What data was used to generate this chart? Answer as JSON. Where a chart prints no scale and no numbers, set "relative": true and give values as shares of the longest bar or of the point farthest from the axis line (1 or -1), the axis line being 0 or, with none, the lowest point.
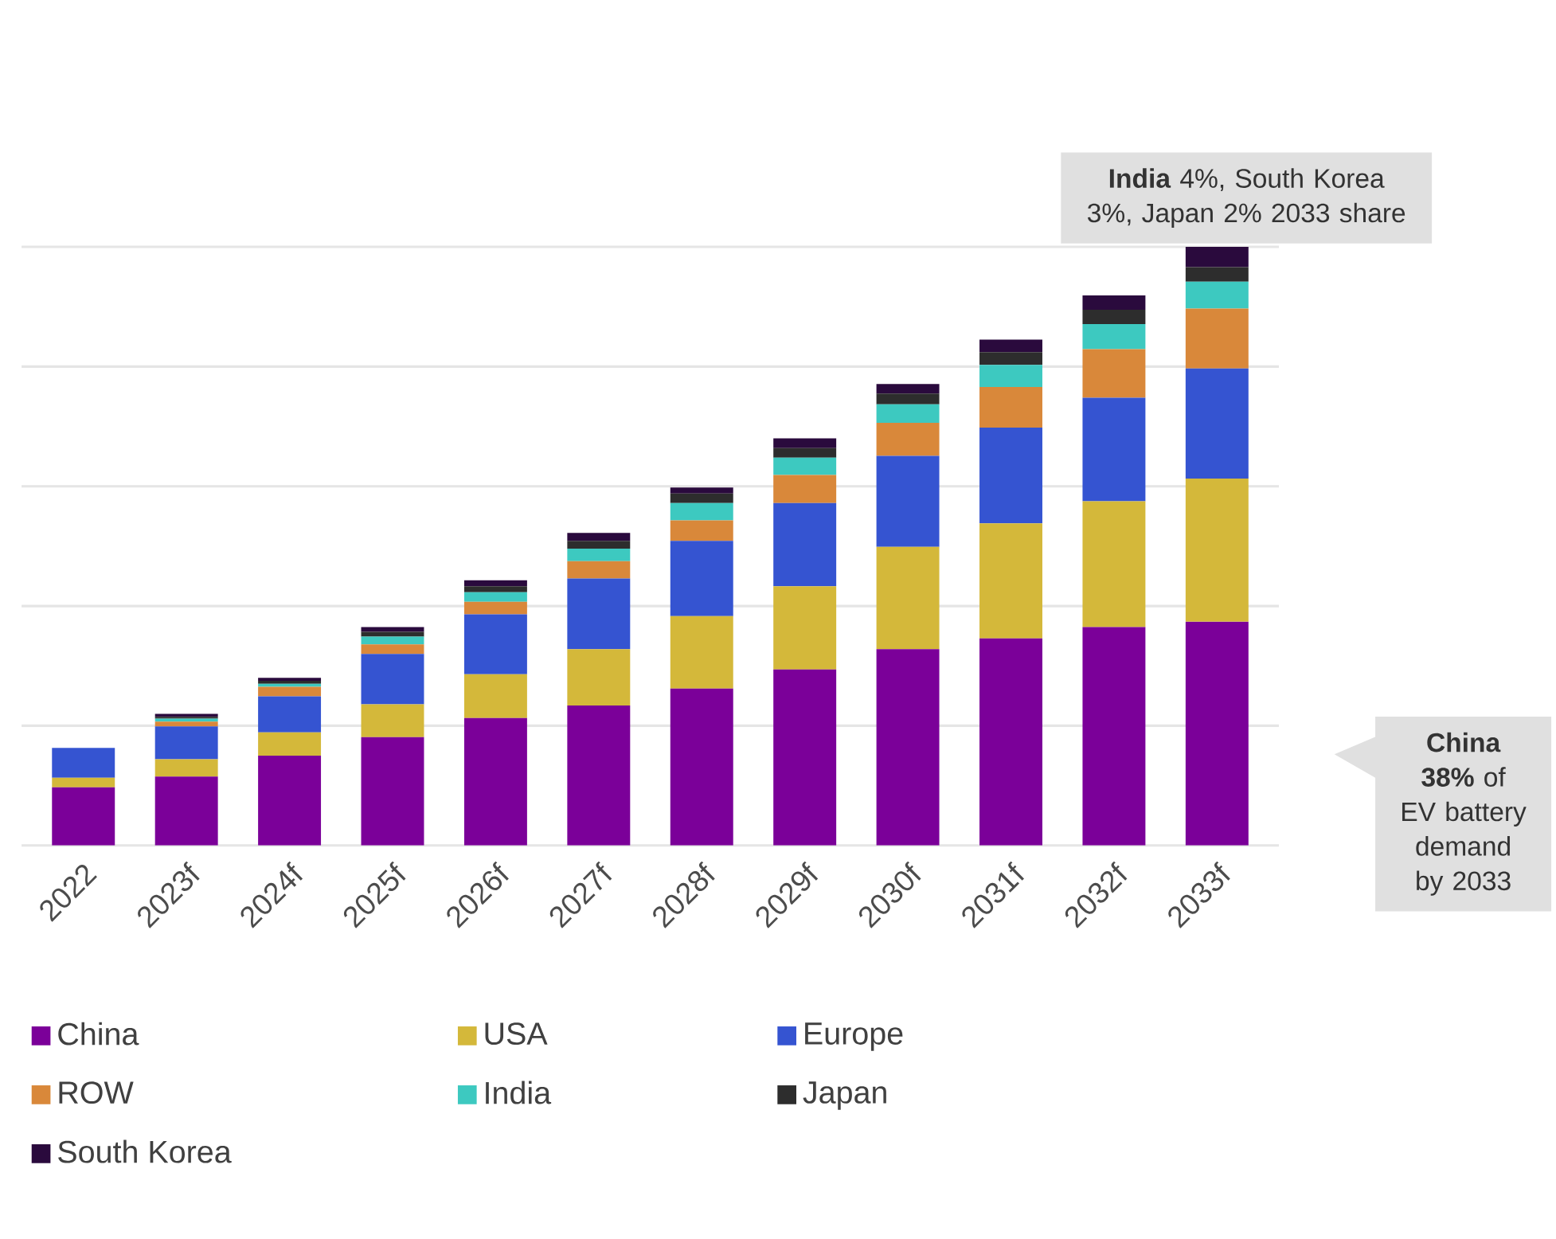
{
  "chart_data": {
    "type": "bar",
    "stacked": true,
    "relative": true,
    "grid": "y",
    "legend": "bottom",
    "categories": [
      "2022",
      "2023f",
      "2024f",
      "2025f",
      "2026f",
      "2027f",
      "2028f",
      "2029f",
      "2030f",
      "2031f",
      "2032f",
      "2033f"
    ],
    "series": [
      {
        "name": "China",
        "color": "#7b0099",
        "values": [
          0.097,
          0.115,
          0.15,
          0.181,
          0.213,
          0.234,
          0.262,
          0.294,
          0.328,
          0.346,
          0.365,
          0.374
        ]
      },
      {
        "name": "USA",
        "color": "#d4b83a",
        "values": [
          0.016,
          0.029,
          0.039,
          0.055,
          0.073,
          0.094,
          0.121,
          0.139,
          0.171,
          0.192,
          0.21,
          0.239
        ]
      },
      {
        "name": "Europe",
        "color": "#3554d1",
        "values": [
          0.05,
          0.055,
          0.06,
          0.084,
          0.1,
          0.118,
          0.126,
          0.139,
          0.152,
          0.16,
          0.173,
          0.184
        ]
      },
      {
        "name": "ROW",
        "color": "#d9883a",
        "values": [
          0,
          0.008,
          0.016,
          0.016,
          0.021,
          0.029,
          0.034,
          0.047,
          0.055,
          0.068,
          0.081,
          0.1
        ]
      },
      {
        "name": "India",
        "color": "#3dc9c0",
        "values": [
          0,
          0.005,
          0.005,
          0.013,
          0.016,
          0.021,
          0.029,
          0.029,
          0.031,
          0.037,
          0.042,
          0.045
        ]
      },
      {
        "name": "Japan",
        "color": "#2d2d2d",
        "values": [
          0,
          0.003,
          0.005,
          0.008,
          0.01,
          0.013,
          0.016,
          0.016,
          0.018,
          0.021,
          0.024,
          0.024
        ]
      },
      {
        "name": "South Korea",
        "color": "#2a0a3d",
        "values": [
          0,
          0.005,
          0.005,
          0.008,
          0.01,
          0.013,
          0.01,
          0.016,
          0.016,
          0.021,
          0.024,
          0.034
        ]
      }
    ],
    "annotations": [
      "**India** 4%, South Korea 3%, Japan 2% 2033 share",
      "**China 38%** of EV battery demand by 2033"
    ]
  }
}
